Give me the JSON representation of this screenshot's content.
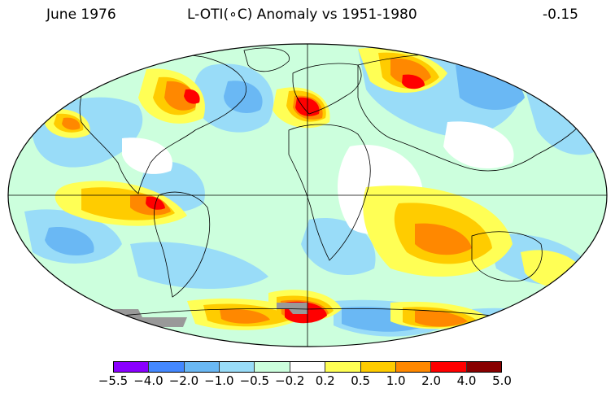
{
  "header": {
    "date": "June 1976",
    "title": "L-OTI(∘C) Anomaly vs 1951-1980",
    "global_mean": "-0.15"
  },
  "legend": {
    "ticks": [
      "−5.5",
      "−4.0",
      "−2.0",
      "−1.0",
      "−0.5",
      "−0.2",
      "0.2",
      "0.5",
      "1.0",
      "2.0",
      "4.0",
      "5.0"
    ],
    "colors": [
      "#8a00ff",
      "#4488ff",
      "#6ab8f4",
      "#99dcf8",
      "#ccffdd",
      "#ffffff",
      "#ffff55",
      "#ffcc00",
      "#ff8800",
      "#ff0000",
      "#880000"
    ]
  },
  "map_colors": {
    "missing": "#999999",
    "land_outline": "#000000",
    "graticule": "#000000"
  }
}
